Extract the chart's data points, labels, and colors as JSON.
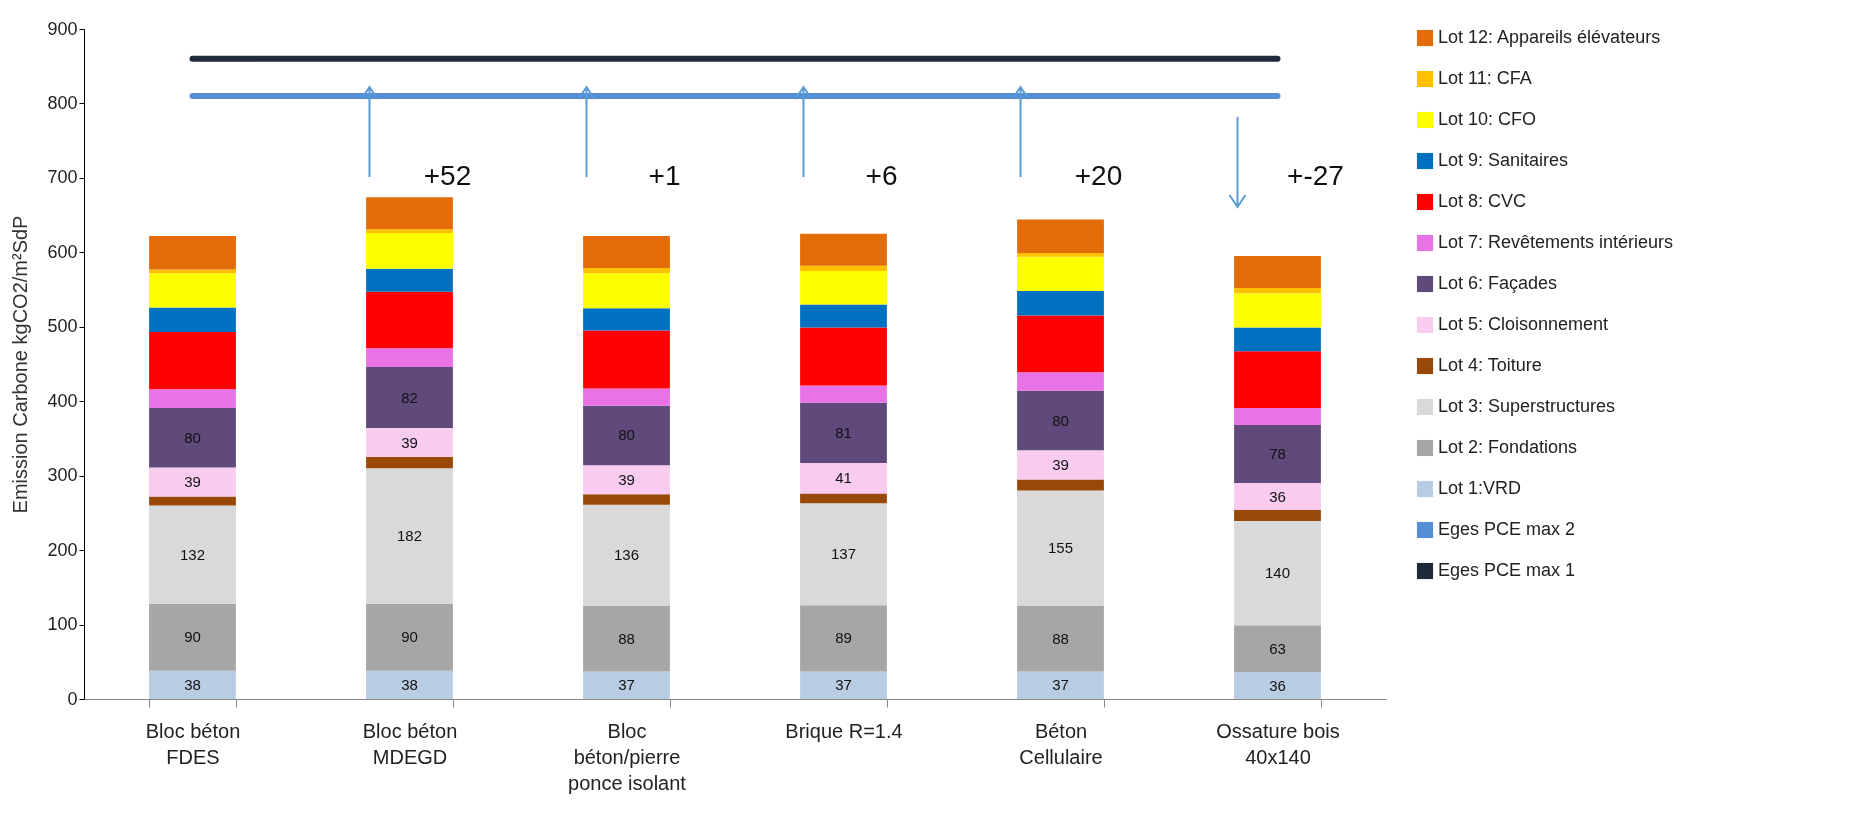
{
  "chart_data": {
    "type": "bar",
    "stacked": true,
    "ylabel": "Emission Carbone  kgCO2/m²SdP",
    "ylim": [
      0,
      900
    ],
    "yticks": [
      0,
      100,
      200,
      300,
      400,
      500,
      600,
      700,
      800,
      900
    ],
    "grid": false,
    "legend": "right",
    "categories": [
      "Bloc béton\nFDES",
      "Bloc béton\nMDEGD",
      "Bloc\nbéton/pierre\nponce isolant",
      "Brique R=1.4",
      "Béton\nCellulaire",
      "Ossature bois\n40x140"
    ],
    "series": [
      {
        "name": "Lot 1:VRD",
        "color": "#b8cce4",
        "values": [
          38,
          38,
          37,
          37,
          37,
          36
        ],
        "value_labels": [
          "38",
          "38",
          "37",
          "37",
          "37",
          "36"
        ]
      },
      {
        "name": "Lot 2: Fondations",
        "color": "#a6a6a6",
        "values": [
          90,
          90,
          88,
          89,
          88,
          63
        ],
        "value_labels": [
          "90",
          "90",
          "88",
          "89",
          "88",
          "63"
        ]
      },
      {
        "name": "Lot 3: Superstructures",
        "color": "#d9d9d9",
        "values": [
          132,
          182,
          136,
          137,
          155,
          140
        ],
        "value_labels": [
          "132",
          "182",
          "136",
          "137",
          "155",
          "140"
        ]
      },
      {
        "name": "Lot 4: Toiture",
        "color": "#984807",
        "values": [
          12,
          15,
          14,
          13,
          15,
          15
        ]
      },
      {
        "name": "Lot 5: Cloisonnement",
        "color": "#f8cbef",
        "values": [
          39,
          39,
          39,
          41,
          39,
          36
        ],
        "value_labels": [
          "39",
          "39",
          "39",
          "41",
          "39",
          "36"
        ]
      },
      {
        "name": "Lot 6: Façades",
        "color": "#604a7b",
        "values": [
          80,
          82,
          80,
          81,
          80,
          78
        ],
        "value_labels": [
          "80",
          "82",
          "80",
          "81",
          "80",
          "78"
        ]
      },
      {
        "name": "Lot 7: Revêtements intérieurs",
        "color": "#e773e6",
        "values": [
          25,
          25,
          23,
          23,
          25,
          23
        ]
      },
      {
        "name": "Lot 8: CVC",
        "color": "#ff0000",
        "values": [
          77,
          76,
          78,
          78,
          76,
          76
        ]
      },
      {
        "name": "Lot 9: Sanitaires",
        "color": "#0070c0",
        "values": [
          33,
          31,
          30,
          31,
          33,
          32
        ]
      },
      {
        "name": "Lot 10: CFO",
        "color": "#ffff00",
        "values": [
          46,
          48,
          47,
          45,
          46,
          46
        ]
      },
      {
        "name": "Lot 11: CFA",
        "color": "#ffc000",
        "values": [
          5,
          5,
          7,
          7,
          5,
          7
        ]
      },
      {
        "name": "Lot 12: Appareils élévateurs",
        "color": "#e36c09",
        "values": [
          45,
          43,
          43,
          43,
          45,
          43
        ]
      },
      {
        "name": "Eges PCE max 2",
        "type": "line",
        "color": "#558ed5",
        "values": [
          810,
          810,
          810,
          810,
          810,
          810
        ]
      },
      {
        "name": "Eges PCE max 1",
        "type": "line",
        "color": "#1f2a3a",
        "values": [
          860,
          860,
          860,
          860,
          860,
          860
        ]
      }
    ],
    "annotations": [
      "+52",
      "+1",
      "+6",
      "+20",
      "+-27"
    ]
  }
}
